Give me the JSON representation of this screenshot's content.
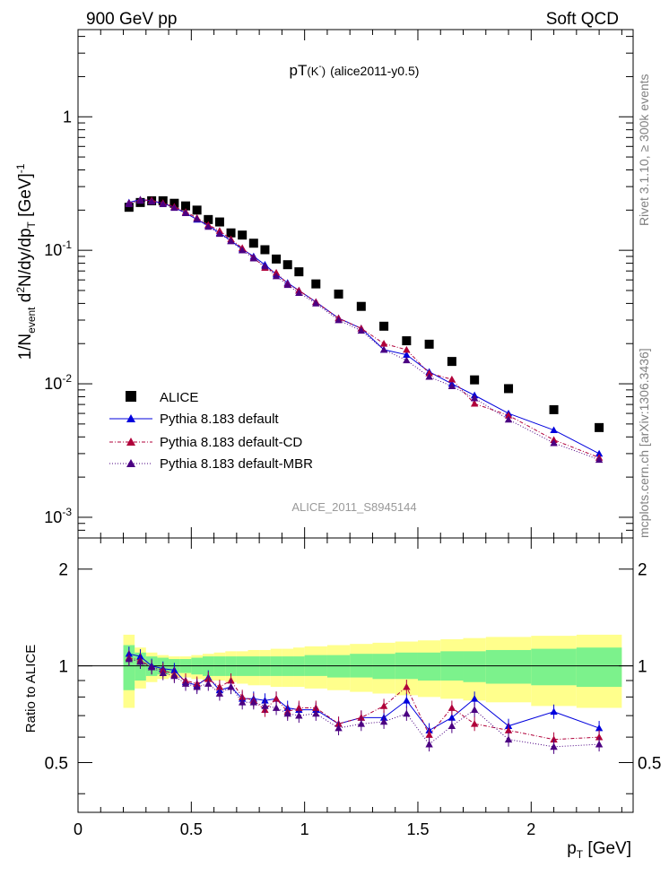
{
  "header": {
    "left": "900 GeV pp",
    "right": "Soft QCD"
  },
  "side": {
    "rivet": "Rivet 3.1.10, ≥ 300k events",
    "source": "mcplots.cern.ch [arXiv:1306.3436]"
  },
  "plot_title": {
    "main": "pT",
    "particle": "(K",
    "sup": "-",
    "close": ")",
    "tag": "(alice2011-y0.5)"
  },
  "analysis_tag": "ALICE_2011_S8945144",
  "ylabel_top": {
    "p1": "1/N",
    "event": "event",
    "d": " d",
    "two": "2",
    "rest": "N/dy/dp",
    "t": "T",
    "unit": " [GeV]",
    "exp": "-1"
  },
  "ylabel_ratio": "Ratio to ALICE",
  "xlabel": {
    "p": "p",
    "t": "T",
    "unit": " [GeV]"
  },
  "x_tick_labels": [
    "0",
    "0.5",
    "1",
    "1.5",
    "2"
  ],
  "y_tick_labels_top": [
    {
      "mant": "10",
      "exp": "-3",
      "value": 0.001
    },
    {
      "mant": "10",
      "exp": "-2",
      "value": 0.01
    },
    {
      "mant": "10",
      "exp": "-1",
      "value": 0.1
    },
    {
      "mant": "1",
      "exp": "",
      "value": 1
    }
  ],
  "y_tick_labels_ratio": [
    "0.5",
    "1",
    "2"
  ],
  "legend": [
    {
      "label": "ALICE",
      "color": "#000000",
      "marker": "square"
    },
    {
      "label": "Pythia 8.183 default",
      "color": "#0000dd",
      "marker": "triangle",
      "line": "solid"
    },
    {
      "label": "Pythia 8.183 default-CD",
      "color": "#b0003a",
      "marker": "triangle",
      "line": "dashdot"
    },
    {
      "label": "Pythia 8.183 default-MBR",
      "color": "#4b0082",
      "marker": "triangle",
      "line": "dotted"
    }
  ],
  "chart_data": [
    {
      "type": "scatter",
      "title": "pT(K-) (alice2011-y0.5)",
      "xlabel": "pT [GeV]",
      "ylabel": "1/Nevent d2N/dy/dpT [GeV]-1",
      "xlim": [
        0,
        2.45
      ],
      "ylim": [
        0.0007,
        4.5
      ],
      "log_y": true,
      "grid": false,
      "legend_position": "bottom-left",
      "x": [
        0.225,
        0.275,
        0.325,
        0.375,
        0.425,
        0.475,
        0.525,
        0.575,
        0.625,
        0.675,
        0.725,
        0.775,
        0.825,
        0.875,
        0.925,
        0.975,
        1.05,
        1.15,
        1.25,
        1.35,
        1.45,
        1.55,
        1.65,
        1.75,
        1.9,
        2.1,
        2.3
      ],
      "series": [
        {
          "name": "ALICE",
          "values": [
            0.21,
            0.228,
            0.235,
            0.235,
            0.225,
            0.215,
            0.2,
            0.17,
            0.163,
            0.135,
            0.13,
            0.113,
            0.101,
            0.086,
            0.078,
            0.069,
            0.056,
            0.047,
            0.038,
            0.027,
            0.021,
            0.0198,
            0.0147,
            0.0107,
            0.0092,
            0.0064,
            0.0047
          ]
        },
        {
          "name": "Pythia 8.183 default",
          "values": [
            0.228,
            0.24,
            0.235,
            0.225,
            0.21,
            0.19,
            0.17,
            0.153,
            0.135,
            0.118,
            0.102,
            0.09,
            0.078,
            0.066,
            0.057,
            0.05,
            0.041,
            0.031,
            0.026,
            0.018,
            0.0165,
            0.0123,
            0.01,
            0.0082,
            0.006,
            0.0045,
            0.003
          ]
        },
        {
          "name": "Pythia 8.183 default-CD",
          "values": [
            0.225,
            0.238,
            0.237,
            0.226,
            0.212,
            0.194,
            0.175,
            0.155,
            0.14,
            0.121,
            0.104,
            0.088,
            0.074,
            0.068,
            0.056,
            0.05,
            0.041,
            0.031,
            0.026,
            0.02,
            0.018,
            0.012,
            0.0108,
            0.0071,
            0.0058,
            0.0038,
            0.0028
          ]
        },
        {
          "name": "Pythia 8.183 default-MBR",
          "values": [
            0.222,
            0.235,
            0.232,
            0.222,
            0.208,
            0.19,
            0.172,
            0.15,
            0.133,
            0.117,
            0.1,
            0.087,
            0.076,
            0.064,
            0.055,
            0.048,
            0.04,
            0.03,
            0.025,
            0.018,
            0.015,
            0.0113,
            0.0096,
            0.0078,
            0.0054,
            0.0036,
            0.0027
          ]
        }
      ]
    },
    {
      "type": "line",
      "ylabel": "Ratio to ALICE",
      "xlabel": "pT [GeV]",
      "xlim": [
        0,
        2.45
      ],
      "ylim": [
        0.35,
        2.5
      ],
      "log_y": true,
      "grid": false,
      "reference_line": 1,
      "x": [
        0.225,
        0.275,
        0.325,
        0.375,
        0.425,
        0.475,
        0.525,
        0.575,
        0.625,
        0.675,
        0.725,
        0.775,
        0.825,
        0.875,
        0.925,
        0.975,
        1.05,
        1.15,
        1.25,
        1.35,
        1.45,
        1.55,
        1.65,
        1.75,
        1.9,
        2.1,
        2.3
      ],
      "x_edges": [
        0.2,
        0.25,
        0.3,
        0.35,
        0.4,
        0.45,
        0.5,
        0.55,
        0.6,
        0.65,
        0.7,
        0.75,
        0.8,
        0.85,
        0.9,
        0.95,
        1.0,
        1.1,
        1.2,
        1.3,
        1.4,
        1.5,
        1.6,
        1.7,
        1.8,
        2.0,
        2.2,
        2.4
      ],
      "stat_band": {
        "color": "#7cf28c",
        "lower": [
          0.84,
          0.9,
          0.93,
          0.94,
          0.95,
          0.95,
          0.94,
          0.93,
          0.93,
          0.93,
          0.93,
          0.93,
          0.93,
          0.93,
          0.93,
          0.93,
          0.93,
          0.92,
          0.92,
          0.91,
          0.91,
          0.9,
          0.9,
          0.89,
          0.88,
          0.87,
          0.86
        ],
        "upper": [
          1.16,
          1.1,
          1.07,
          1.06,
          1.05,
          1.05,
          1.06,
          1.07,
          1.07,
          1.07,
          1.07,
          1.07,
          1.07,
          1.07,
          1.07,
          1.07,
          1.08,
          1.08,
          1.09,
          1.09,
          1.1,
          1.1,
          1.11,
          1.11,
          1.12,
          1.13,
          1.14
        ]
      },
      "syst_band": {
        "color": "#ffff8c",
        "lower": [
          0.74,
          0.85,
          0.89,
          0.91,
          0.92,
          0.92,
          0.91,
          0.9,
          0.9,
          0.89,
          0.88,
          0.87,
          0.87,
          0.86,
          0.86,
          0.86,
          0.85,
          0.84,
          0.83,
          0.82,
          0.81,
          0.8,
          0.79,
          0.78,
          0.77,
          0.75,
          0.74
        ],
        "upper": [
          1.25,
          1.14,
          1.1,
          1.08,
          1.07,
          1.07,
          1.08,
          1.09,
          1.1,
          1.11,
          1.11,
          1.12,
          1.12,
          1.13,
          1.13,
          1.14,
          1.15,
          1.16,
          1.17,
          1.18,
          1.19,
          1.2,
          1.21,
          1.22,
          1.23,
          1.24,
          1.25
        ]
      },
      "series": [
        {
          "name": "Pythia 8.183 default",
          "values": [
            1.09,
            1.07,
            1.0,
            0.98,
            0.97,
            0.89,
            0.87,
            0.92,
            0.84,
            0.86,
            0.79,
            0.79,
            0.78,
            0.79,
            0.74,
            0.73,
            0.73,
            0.66,
            0.69,
            0.69,
            0.78,
            0.63,
            0.69,
            0.79,
            0.65,
            0.72,
            0.64
          ]
        },
        {
          "name": "Pythia 8.183 default-CD",
          "values": [
            1.06,
            1.04,
            0.99,
            0.97,
            0.94,
            0.9,
            0.88,
            0.91,
            0.86,
            0.9,
            0.8,
            0.78,
            0.73,
            0.79,
            0.72,
            0.74,
            0.74,
            0.66,
            0.69,
            0.75,
            0.86,
            0.61,
            0.74,
            0.66,
            0.63,
            0.59,
            0.6
          ]
        },
        {
          "name": "Pythia 8.183 default-MBR",
          "values": [
            1.05,
            1.03,
            0.99,
            0.95,
            0.93,
            0.88,
            0.86,
            0.88,
            0.82,
            0.86,
            0.77,
            0.77,
            0.75,
            0.74,
            0.71,
            0.7,
            0.71,
            0.64,
            0.66,
            0.67,
            0.71,
            0.57,
            0.65,
            0.73,
            0.59,
            0.56,
            0.57
          ]
        }
      ]
    }
  ]
}
